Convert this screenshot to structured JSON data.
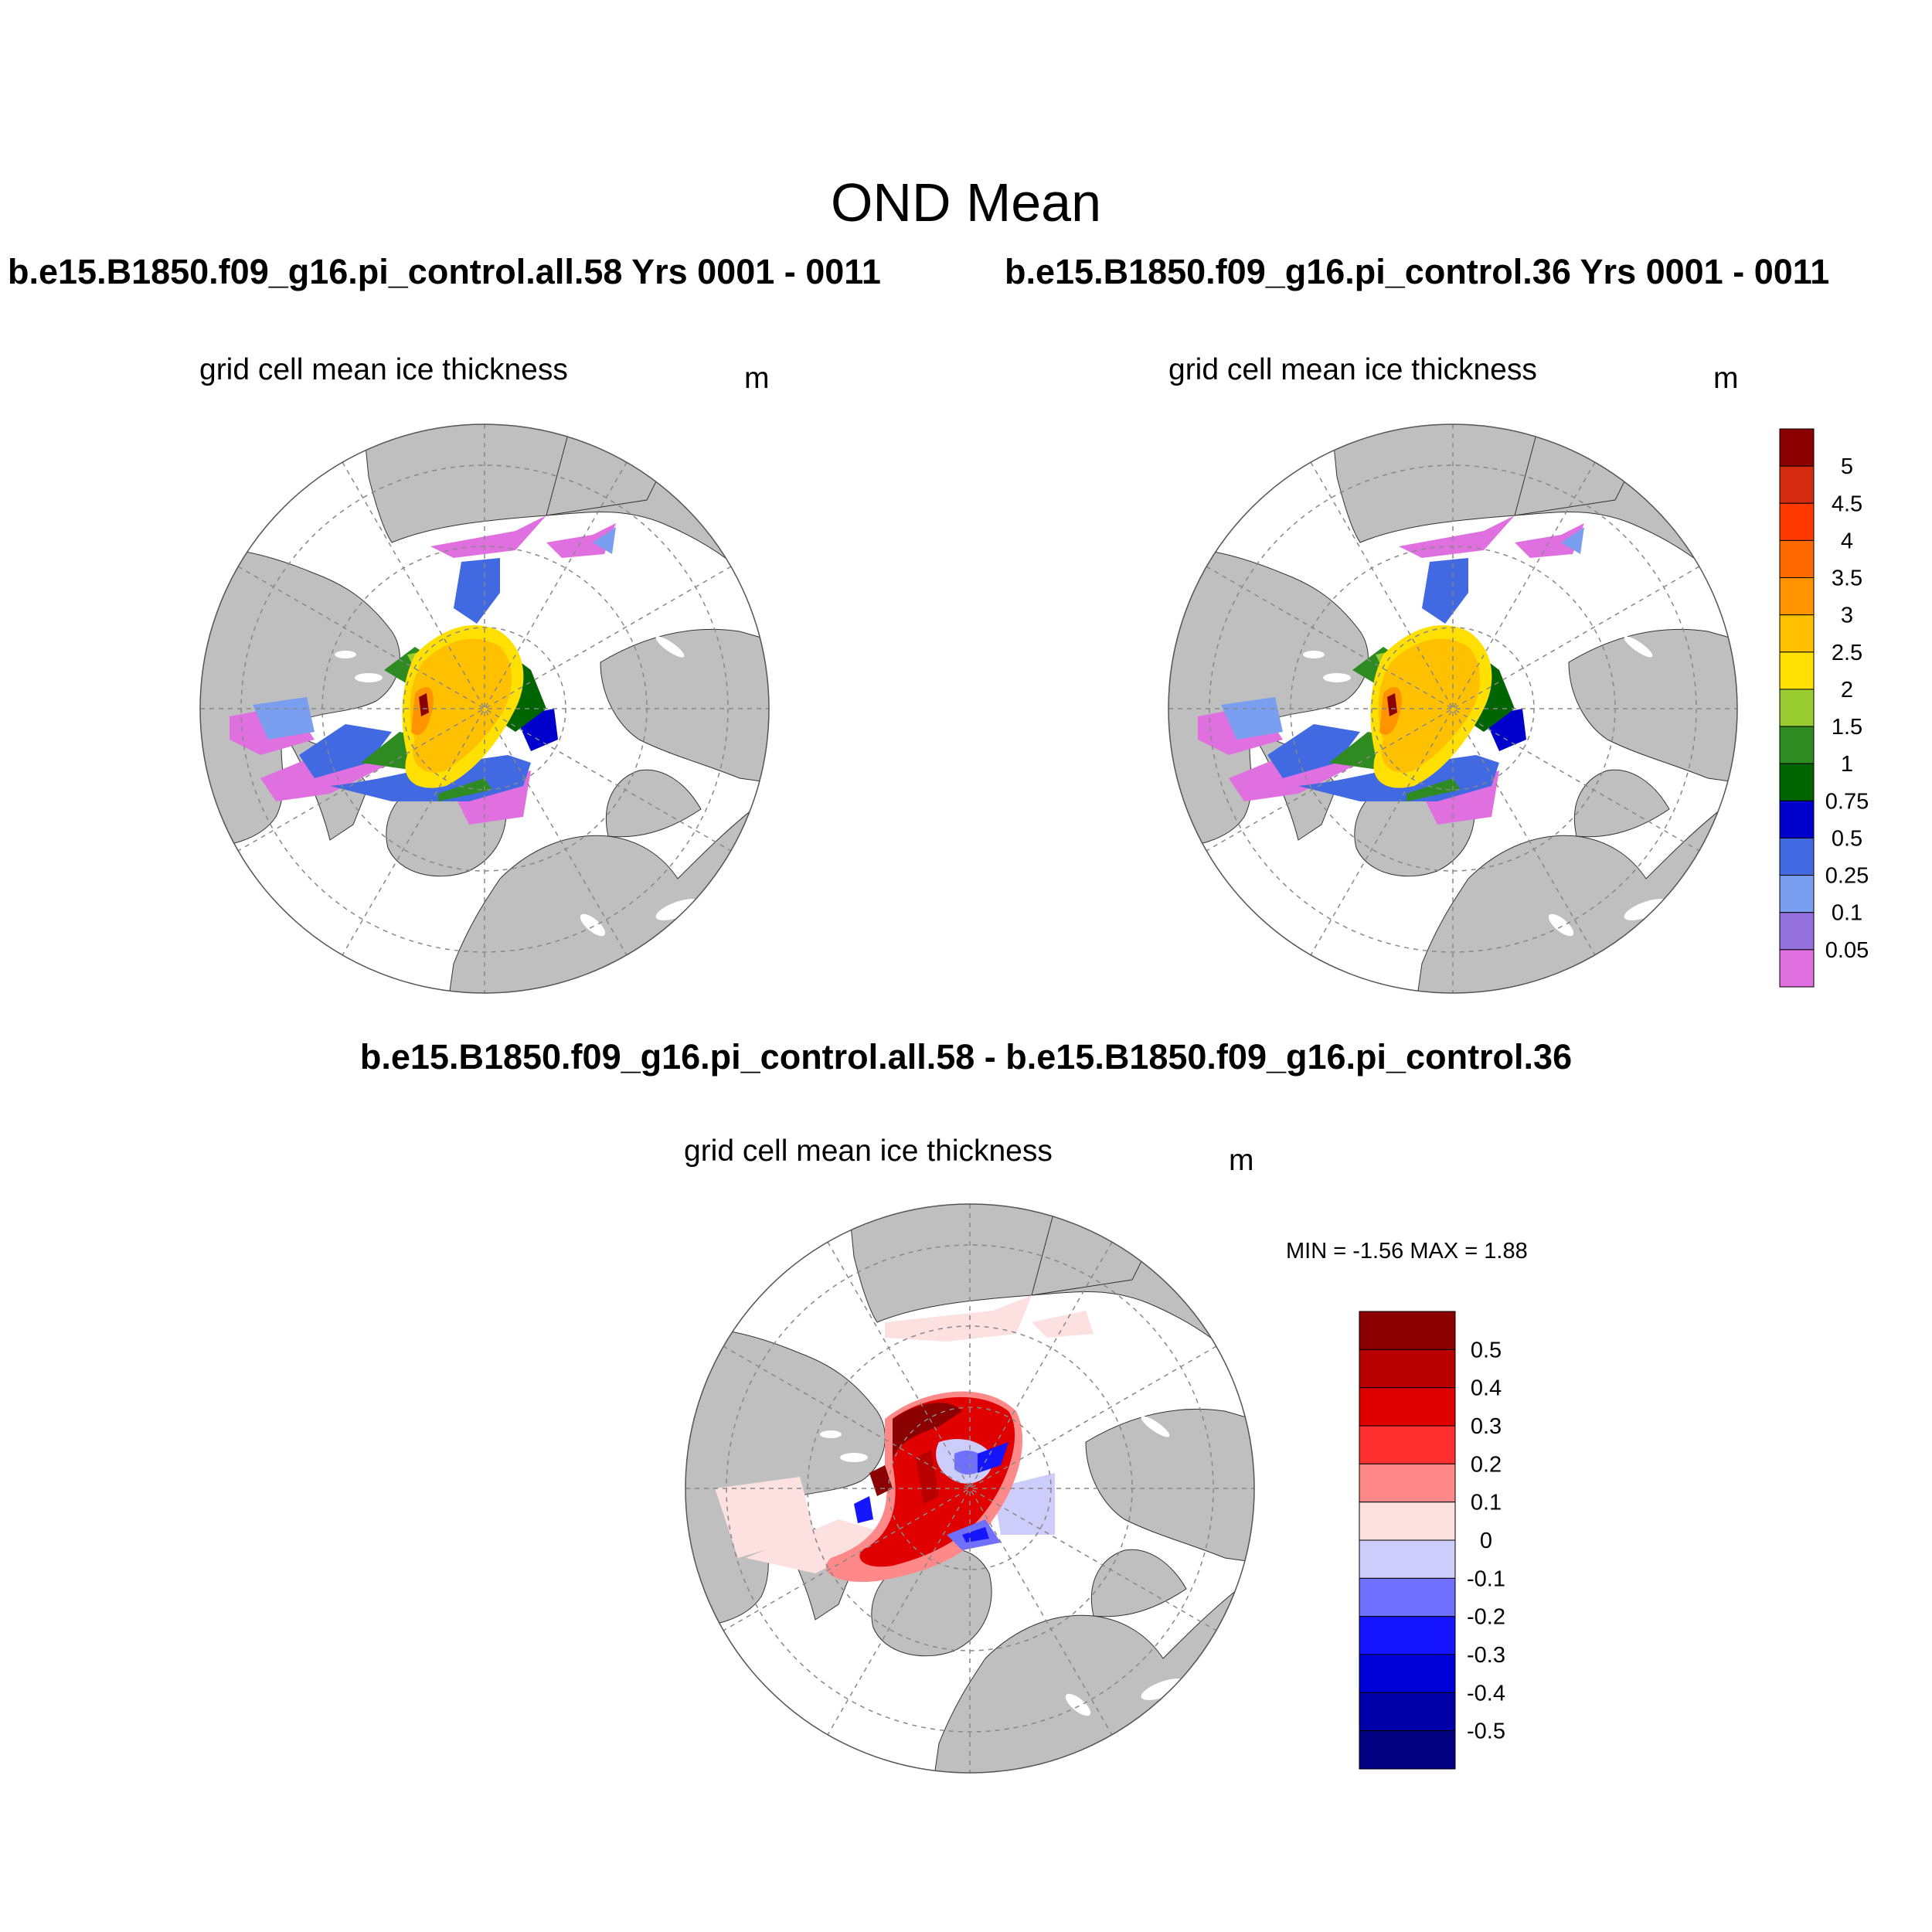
{
  "figure": {
    "title": "OND Mean",
    "panel_left": {
      "case_title": "b.e15.B1850.f09_g16.pi_control.all.58  Yrs 0001 - 0011",
      "field": "grid cell mean ice thickness",
      "units": "m"
    },
    "panel_right": {
      "case_title": "b.e15.B1850.f09_g16.pi_control.36  Yrs 0001 - 0011",
      "field": "grid cell mean ice thickness",
      "units": "m"
    },
    "panel_diff": {
      "case_title": "b.e15.B1850.f09_g16.pi_control.all.58 - b.e15.B1850.f09_g16.pi_control.36",
      "field": "grid cell mean ice thickness",
      "units": "m",
      "minmax": "MIN =  -1.56 MAX =   1.88"
    }
  },
  "colors": {
    "land": "#bfbfbf",
    "ocean": "#ffffff",
    "grid": "#888888"
  },
  "chart_data": {
    "type": "map",
    "projection": "north-polar-stereographic",
    "thickness_colorbar": {
      "labels": [
        "5",
        "4.5",
        "4",
        "3.5",
        "3",
        "2.5",
        "2",
        "1.5",
        "1",
        "0.75",
        "0.5",
        "0.25",
        "0.1",
        "0.05"
      ],
      "colors_top_to_bottom": [
        "#8b0000",
        "#d42b10",
        "#ff3a00",
        "#ff6a00",
        "#ff9400",
        "#ffc000",
        "#ffe000",
        "#9acd32",
        "#2e8b22",
        "#006400",
        "#0000cd",
        "#4169e1",
        "#7b9ff0",
        "#9370db",
        "#e070e0"
      ]
    },
    "difference_colorbar": {
      "labels": [
        "0.5",
        "0.4",
        "0.3",
        "0.2",
        "0.1",
        "0",
        "-0.1",
        "-0.2",
        "-0.3",
        "-0.4",
        "-0.5"
      ],
      "colors_top_to_bottom": [
        "#8b0000",
        "#b80000",
        "#e00000",
        "#ff3030",
        "#ff8888",
        "#fde0e0",
        "#cdcdfb",
        "#7070ff",
        "#1515ff",
        "#0000d8",
        "#0000a8",
        "#000080"
      ]
    }
  }
}
